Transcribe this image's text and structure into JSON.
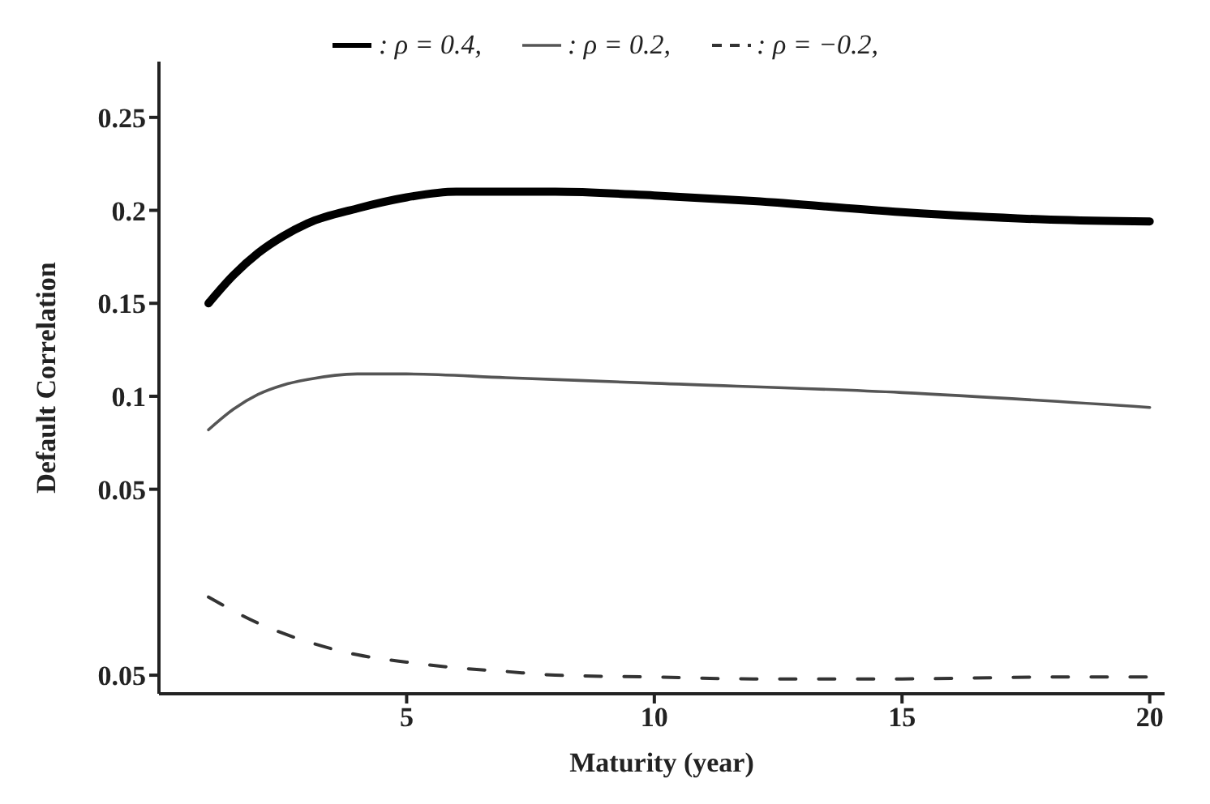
{
  "chart_data": {
    "type": "line",
    "xlabel": "Maturity (year)",
    "ylabel": "Default Correlation",
    "xlim": [
      0,
      20.3
    ],
    "xticks": [
      5,
      10,
      15,
      20
    ],
    "ylim": [
      -0.06,
      0.28
    ],
    "yticks": [
      {
        "value": -0.05,
        "label": "0.05"
      },
      0.05,
      0.1,
      0.15,
      0.2,
      0.25
    ],
    "legend": "top",
    "grid": false,
    "marker": "none",
    "series": [
      {
        "name": ": ρ = 0.4,",
        "color": "#000000",
        "line_style": "solid",
        "x": [
          1,
          1.5,
          2,
          2.5,
          3,
          4,
          5,
          6,
          7,
          8,
          10,
          12,
          15,
          18,
          20
        ],
        "values": [
          0.15,
          0.165,
          0.177,
          0.186,
          0.193,
          0.201,
          0.207,
          0.21,
          0.21,
          0.21,
          0.208,
          0.205,
          0.199,
          0.195,
          0.194
        ]
      },
      {
        "name": ": ρ = 0.2,",
        "color": "#555555",
        "line_style": "solid",
        "x": [
          1,
          1.5,
          2,
          2.5,
          3,
          4,
          5,
          7,
          10,
          15,
          20
        ],
        "values": [
          0.082,
          0.093,
          0.101,
          0.106,
          0.109,
          0.112,
          0.112,
          0.11,
          0.107,
          0.102,
          0.094
        ]
      },
      {
        "name": ": ρ = −0.2,",
        "color": "#333333",
        "line_style": "dashed",
        "x": [
          1,
          2,
          3,
          4,
          5,
          6,
          7,
          8,
          10,
          12,
          15,
          18,
          20
        ],
        "values": [
          -0.008,
          -0.022,
          -0.032,
          -0.039,
          -0.043,
          -0.046,
          -0.048,
          -0.05,
          -0.051,
          -0.052,
          -0.052,
          -0.051,
          -0.051
        ]
      }
    ]
  }
}
